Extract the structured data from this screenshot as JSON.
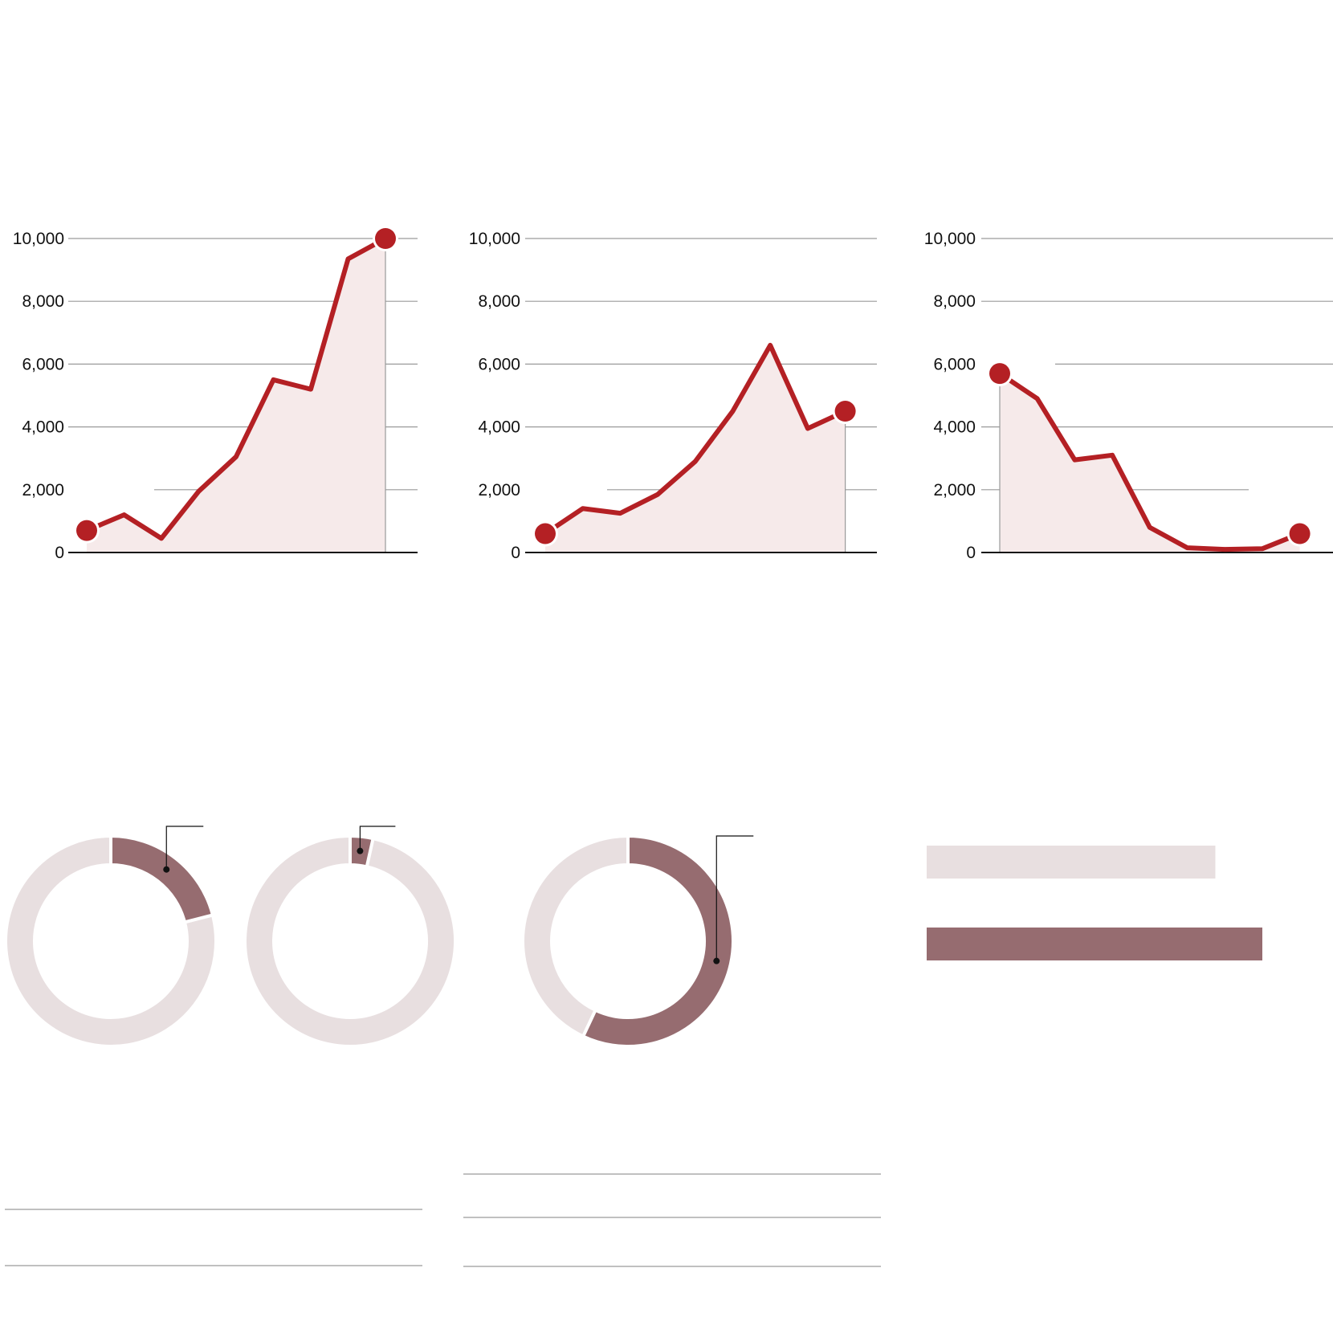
{
  "colors": {
    "line": "#b42024",
    "area": "#f6eaea",
    "grid": "#9a9a9a",
    "axis": "#111111",
    "donut_track": "#e8dfe0",
    "donut_highlight": "#966c70",
    "bar_light": "#e8dfe0",
    "bar_dark": "#966c70",
    "rule": "#9a9a9a"
  },
  "chart_data": [
    {
      "type": "line",
      "x": [
        1,
        2,
        3,
        4,
        5,
        6,
        7,
        8,
        9
      ],
      "values": [
        700,
        1200,
        450,
        1950,
        3050,
        5500,
        5200,
        9350,
        10000
      ],
      "ylim": [
        0,
        10000
      ],
      "yticks": [
        "0",
        "2,000",
        "4,000",
        "6,000",
        "8,000",
        "10,000"
      ],
      "grid": true,
      "highlight_points": [
        0,
        8
      ]
    },
    {
      "type": "line",
      "x": [
        1,
        2,
        3,
        4,
        5,
        6,
        7,
        8,
        9
      ],
      "values": [
        600,
        1400,
        1250,
        1850,
        2900,
        4500,
        6600,
        3950,
        4500
      ],
      "ylim": [
        0,
        10000
      ],
      "yticks": [
        "0",
        "2,000",
        "4,000",
        "6,000",
        "8,000",
        "10,000"
      ],
      "grid": true,
      "highlight_points": [
        0,
        8
      ]
    },
    {
      "type": "line",
      "x": [
        1,
        2,
        3,
        4,
        5,
        6,
        7,
        8,
        9
      ],
      "values": [
        5700,
        4900,
        2950,
        3100,
        800,
        150,
        100,
        120,
        600
      ],
      "ylim": [
        0,
        10000
      ],
      "yticks": [
        "0",
        "2,000",
        "4,000",
        "6,000",
        "8,000",
        "10,000"
      ],
      "grid": true,
      "highlight_points": [
        0,
        8
      ]
    },
    {
      "type": "pie",
      "donut": true,
      "highlight_fraction": 0.21
    },
    {
      "type": "pie",
      "donut": true,
      "highlight_fraction": 0.035
    },
    {
      "type": "pie",
      "donut": true,
      "highlight_fraction": 0.57
    },
    {
      "type": "bar",
      "orientation": "horizontal",
      "values": [
        0.86,
        1.0
      ]
    }
  ]
}
